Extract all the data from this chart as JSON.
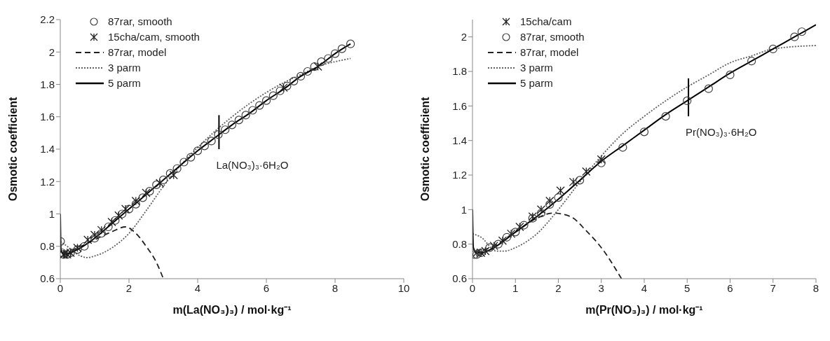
{
  "chart_data": [
    {
      "type": "line",
      "xlabel": "m(La(NO₃)₃) / mol·kg⁻¹",
      "ylabel": "Osmotic coefficient",
      "xlim": [
        0,
        10
      ],
      "xticks": [
        0,
        2,
        4,
        6,
        8,
        10
      ],
      "ylim": [
        0.6,
        2.2
      ],
      "yticks": [
        0.6,
        0.8,
        1,
        1.2,
        1.4,
        1.6,
        1.8,
        2,
        2.2
      ],
      "grid": false,
      "legend": "top left",
      "annotations": [
        {
          "text": "La(NO₃)₃·6H₂O",
          "x": 4.62,
          "y": 1.4
        }
      ],
      "series": [
        {
          "name": "87rar, smooth",
          "type": "scatter",
          "marker": "circle",
          "color": "#404040",
          "x": [
            0.01,
            0.05,
            0.1,
            0.2,
            0.3,
            0.5,
            0.7,
            1.0,
            1.2,
            1.4,
            1.6,
            1.8,
            2.0,
            2.2,
            2.4,
            2.6,
            2.8,
            3.0,
            3.2,
            3.4,
            3.6,
            3.8,
            4.0,
            4.2,
            4.4,
            4.6,
            4.8,
            5.0,
            5.2,
            5.4,
            5.6,
            5.8,
            6.0,
            6.2,
            6.4,
            6.6,
            6.8,
            7.0,
            7.2,
            7.4,
            7.6,
            7.8,
            8.0,
            8.2,
            8.45
          ],
          "values": [
            0.83,
            0.76,
            0.75,
            0.75,
            0.76,
            0.78,
            0.8,
            0.85,
            0.88,
            0.92,
            0.96,
            1.0,
            1.03,
            1.06,
            1.1,
            1.14,
            1.18,
            1.21,
            1.25,
            1.28,
            1.32,
            1.35,
            1.39,
            1.42,
            1.45,
            1.49,
            1.52,
            1.55,
            1.58,
            1.61,
            1.64,
            1.67,
            1.7,
            1.73,
            1.76,
            1.79,
            1.82,
            1.85,
            1.88,
            1.91,
            1.94,
            1.96,
            1.99,
            2.02,
            2.05
          ]
        },
        {
          "name": "15cha/cam, smooth",
          "type": "scatter",
          "marker": "cross",
          "color": "#202020",
          "x": [
            0.1,
            0.2,
            0.3,
            0.5,
            0.8,
            1.0,
            1.2,
            1.5,
            1.7,
            1.9,
            2.2,
            2.5,
            2.9,
            3.3,
            6.5,
            7.5
          ],
          "values": [
            0.75,
            0.75,
            0.76,
            0.79,
            0.84,
            0.87,
            0.9,
            0.95,
            0.99,
            1.03,
            1.08,
            1.13,
            1.19,
            1.24,
            1.78,
            1.91
          ]
        },
        {
          "name": "87rar, model",
          "type": "line",
          "line_style": "dashed",
          "color": "#202020",
          "x": [
            0.05,
            0.5,
            1.0,
            1.5,
            1.9,
            2.2,
            2.5,
            2.8,
            3.0
          ],
          "values": [
            0.76,
            0.79,
            0.84,
            0.89,
            0.92,
            0.88,
            0.8,
            0.7,
            0.6
          ]
        },
        {
          "name": "3 parm",
          "type": "line",
          "line_style": "dotted",
          "color": "#606060",
          "x": [
            0,
            0.2,
            0.5,
            0.8,
            1.0,
            1.5,
            2.0,
            2.5,
            3.0,
            3.5,
            4.0,
            4.5,
            5.0,
            5.5,
            6.0,
            6.5,
            7.0,
            7.5,
            8.0,
            8.45
          ],
          "values": [
            0.83,
            0.8,
            0.75,
            0.73,
            0.74,
            0.79,
            0.88,
            1.02,
            1.17,
            1.3,
            1.41,
            1.51,
            1.6,
            1.68,
            1.75,
            1.81,
            1.86,
            1.91,
            1.94,
            1.96
          ]
        },
        {
          "name": "5 parm",
          "type": "line",
          "line_style": "solid",
          "color": "#000000",
          "x": [
            0,
            0.02,
            0.1,
            0.3,
            0.5,
            1.0,
            1.5,
            2.0,
            2.5,
            3.0,
            3.5,
            4.0,
            4.5,
            5.0,
            5.5,
            6.0,
            6.5,
            7.0,
            7.5,
            8.0,
            8.45
          ],
          "values": [
            1.0,
            0.78,
            0.75,
            0.76,
            0.78,
            0.85,
            0.94,
            1.03,
            1.12,
            1.21,
            1.3,
            1.39,
            1.47,
            1.55,
            1.62,
            1.7,
            1.77,
            1.85,
            1.91,
            1.99,
            2.05
          ]
        },
        {
          "type": "line",
          "line_style": "solid",
          "color": "#000000",
          "x": [
            4.62,
            4.62
          ],
          "values": [
            1.4,
            1.61
          ]
        }
      ]
    },
    {
      "type": "line",
      "xlabel": "m(Pr(NO₃)₃) / mol·kg⁻¹",
      "ylabel": "Osmotic coefficient",
      "xlim": [
        0,
        8
      ],
      "xticks": [
        0,
        1,
        2,
        3,
        4,
        5,
        6,
        7,
        8
      ],
      "ylim": [
        0.6,
        2.1
      ],
      "yticks": [
        0.6,
        0.8,
        1,
        1.2,
        1.4,
        1.6,
        1.8,
        2
      ],
      "grid": false,
      "legend": "top left",
      "annotations": [
        {
          "text": "Pr(NO₃)₃·6H₂O",
          "x": 5.03,
          "y": 1.54
        }
      ],
      "series": [
        {
          "name": "15cha/cam",
          "type": "scatter",
          "marker": "cross",
          "color": "#202020",
          "x": [
            0.1,
            0.2,
            0.3,
            0.5,
            0.7,
            0.9,
            1.1,
            1.4,
            1.6,
            1.8,
            2.05,
            2.35,
            2.65,
            3.0
          ],
          "values": [
            0.75,
            0.75,
            0.76,
            0.79,
            0.82,
            0.86,
            0.9,
            0.96,
            1.0,
            1.05,
            1.11,
            1.16,
            1.22,
            1.29
          ]
        },
        {
          "name": "87rar, smooth",
          "type": "scatter",
          "marker": "circle",
          "color": "#404040",
          "x": [
            0.05,
            0.1,
            0.2,
            0.4,
            0.6,
            0.8,
            1.0,
            1.2,
            1.4,
            1.6,
            1.8,
            2.0,
            2.5,
            3.0,
            3.5,
            4.0,
            4.5,
            5.0,
            5.5,
            6.0,
            6.5,
            7.0,
            7.5,
            7.67
          ],
          "values": [
            0.74,
            0.74,
            0.75,
            0.78,
            0.8,
            0.84,
            0.87,
            0.91,
            0.95,
            0.98,
            1.03,
            1.07,
            1.17,
            1.27,
            1.36,
            1.45,
            1.54,
            1.63,
            1.7,
            1.78,
            1.86,
            1.93,
            2.0,
            2.03
          ]
        },
        {
          "name": "87rar, model",
          "type": "line",
          "line_style": "dashed",
          "color": "#202020",
          "x": [
            0.05,
            0.5,
            1.0,
            1.5,
            1.86,
            2.28,
            2.64,
            3.06,
            3.47
          ],
          "values": [
            0.75,
            0.79,
            0.87,
            0.95,
            0.98,
            0.96,
            0.88,
            0.76,
            0.6
          ]
        },
        {
          "name": "3 parm",
          "type": "line",
          "line_style": "dotted",
          "color": "#606060",
          "x": [
            0,
            0.2,
            0.55,
            0.75,
            1.0,
            1.5,
            2.0,
            2.5,
            3.0,
            3.5,
            4.0,
            4.5,
            5.0,
            5.5,
            6.0,
            6.5,
            7.0,
            8.0
          ],
          "values": [
            0.86,
            0.84,
            0.76,
            0.76,
            0.78,
            0.86,
            1.0,
            1.16,
            1.31,
            1.44,
            1.54,
            1.63,
            1.71,
            1.78,
            1.85,
            1.89,
            1.93,
            1.95
          ]
        },
        {
          "name": "5 parm",
          "type": "line",
          "line_style": "solid",
          "color": "#000000",
          "x": [
            0,
            0.02,
            0.1,
            0.2,
            0.5,
            1.0,
            1.5,
            2.0,
            2.5,
            3.0,
            3.5,
            4.0,
            4.5,
            5.0,
            5.5,
            6.0,
            6.5,
            7.0,
            7.5,
            8.0
          ],
          "values": [
            1.0,
            0.78,
            0.75,
            0.75,
            0.78,
            0.87,
            0.96,
            1.06,
            1.17,
            1.28,
            1.37,
            1.46,
            1.55,
            1.63,
            1.71,
            1.79,
            1.86,
            1.93,
            2.0,
            2.07
          ]
        },
        {
          "type": "line",
          "line_style": "solid",
          "color": "#000000",
          "x": [
            5.03,
            5.03
          ],
          "values": [
            1.54,
            1.76
          ]
        }
      ]
    }
  ]
}
